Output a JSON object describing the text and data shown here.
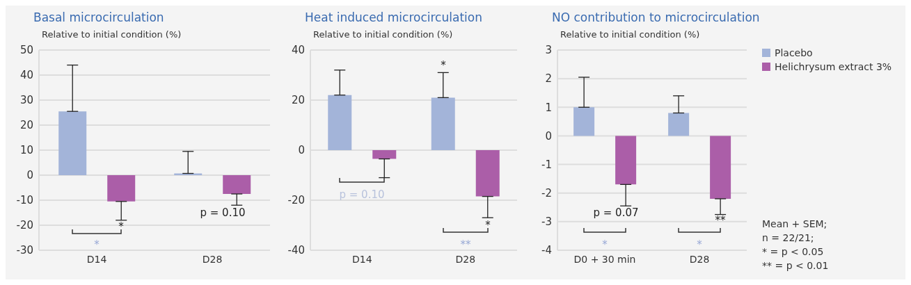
{
  "chart_data": [
    {
      "type": "bar",
      "title": "Basal microcirculation",
      "ylabel": "Relative to initial condition (%)",
      "categories": [
        "D14",
        "D28"
      ],
      "series": [
        {
          "color": "#a3b4d9",
          "values": [
            25.5,
            0.7
          ],
          "errors": [
            [
              25.5,
              44
            ],
            [
              0.7,
              9.5
            ]
          ]
        },
        {
          "color": "#ab5ea8",
          "values": [
            -10.5,
            -7.5
          ],
          "errors": [
            [
              -18,
              -10.5
            ],
            [
              -12,
              -7.5
            ]
          ]
        }
      ],
      "ylim": [
        -30,
        50
      ],
      "yticks": [
        -30,
        -20,
        -10,
        0,
        10,
        20,
        30,
        40,
        50
      ],
      "grid": "y",
      "annotations": [
        "*",
        "*",
        "p = 0.10"
      ]
    },
    {
      "type": "bar",
      "title": "Heat induced microcirculation",
      "ylabel": "Relative to initial condition (%)",
      "categories": [
        "D14",
        "D28"
      ],
      "series": [
        {
          "color": "#a3b4d9",
          "values": [
            22,
            21
          ],
          "errors": [
            [
              22,
              32
            ],
            [
              21,
              31
            ]
          ]
        },
        {
          "color": "#ab5ea8",
          "values": [
            -3.5,
            -18.5
          ],
          "errors": [
            [
              -11,
              -3.5
            ],
            [
              -27,
              -18.5
            ]
          ]
        }
      ],
      "ylim": [
        -40,
        40
      ],
      "yticks": [
        -40,
        -20,
        0,
        20,
        40
      ],
      "grid": "y",
      "annotations": [
        "p = 0.10",
        "*",
        "*",
        "**"
      ]
    },
    {
      "type": "bar",
      "title": "NO contribution to microcirculation",
      "ylabel": "Relative to initial condition (%)",
      "categories": [
        "D0 + 30 min",
        "D28"
      ],
      "series": [
        {
          "name": "Placebo",
          "color": "#a3b4d9",
          "values": [
            1.0,
            0.8
          ],
          "errors": [
            [
              1.0,
              2.05
            ],
            [
              0.8,
              1.4
            ]
          ]
        },
        {
          "name": "Helichrysum extract 3%",
          "color": "#ab5ea8",
          "values": [
            -1.7,
            -2.2
          ],
          "errors": [
            [
              -2.45,
              -1.7
            ],
            [
              -2.75,
              -2.2
            ]
          ]
        }
      ],
      "ylim": [
        -4,
        3
      ],
      "yticks": [
        -4,
        -3,
        -2,
        -1,
        0,
        1,
        2,
        3
      ],
      "grid": "y",
      "legend": "right",
      "annotations": [
        "p = 0.07",
        "**",
        "*",
        "*",
        "Mean + SEM;",
        "n = 22/21;",
        "* = p < 0.05",
        "** = p < 0.01"
      ]
    }
  ]
}
